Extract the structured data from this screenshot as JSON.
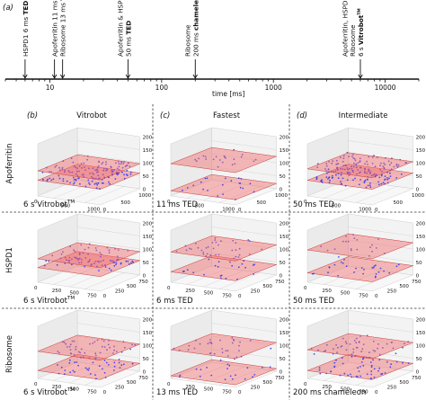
{
  "panel_a": {
    "label": "(a)",
    "axis_label": "time [ms]",
    "ticks": [
      {
        "value": 10,
        "label": "10"
      },
      {
        "value": 100,
        "label": "100"
      },
      {
        "value": 1000,
        "label": "1000"
      },
      {
        "value": 10000,
        "label": "10000"
      }
    ],
    "events": [
      {
        "time_ms": 6,
        "lines": [
          [
            {
              "t": "HSPD1 6 ms ",
              "b": false
            },
            {
              "t": "TED",
              "b": true
            }
          ]
        ]
      },
      {
        "time_ms": 11,
        "lines": [
          [
            {
              "t": "Apoferritin 11 ms ",
              "b": false
            },
            {
              "t": "TED",
              "b": true
            }
          ]
        ]
      },
      {
        "time_ms": 13,
        "lines": [
          [
            {
              "t": "Ribosome 13 ms ",
              "b": false
            },
            {
              "t": "TED",
              "b": true
            }
          ]
        ]
      },
      {
        "time_ms": 50,
        "lines": [
          [
            {
              "t": "Apoferritin & HSPD1",
              "b": false
            }
          ],
          [
            {
              "t": "50 ms ",
              "b": false
            },
            {
              "t": "TED",
              "b": true
            }
          ]
        ]
      },
      {
        "time_ms": 200,
        "lines": [
          [
            {
              "t": "Ribosome",
              "b": false
            }
          ],
          [
            {
              "t": "200 ms ",
              "b": false
            },
            {
              "t": "chameleon",
              "b": true
            }
          ]
        ]
      },
      {
        "time_ms": 6000,
        "lines": [
          [
            {
              "t": "Apoferritin, HSPD1 &",
              "b": false
            }
          ],
          [
            {
              "t": "Ribosome",
              "b": false
            }
          ],
          [
            {
              "t": "6 s ",
              "b": false
            },
            {
              "t": "Vitrobot",
              "b": true
            },
            {
              "t": "TM",
              "b": true,
              "sup": true
            }
          ]
        ]
      }
    ]
  },
  "columns": [
    {
      "letter": "(b)",
      "title": "Vitrobot"
    },
    {
      "letter": "(c)",
      "title": "Fastest"
    },
    {
      "letter": "(d)",
      "title": "Intermediate"
    }
  ],
  "rows": [
    {
      "label": "Apoferritin",
      "z_ticks": [
        "200",
        "150",
        "100",
        "50",
        "0"
      ],
      "xy_ticks": [
        "0",
        "500",
        "1000"
      ]
    },
    {
      "label": "HSPD1",
      "z_ticks": [
        "200",
        "150",
        "100",
        "50",
        "0"
      ],
      "xy_ticks": [
        "0",
        "250",
        "500",
        "750"
      ]
    },
    {
      "label": "Ribosome",
      "z_ticks": [
        "200",
        "150",
        "100",
        "50",
        "0"
      ],
      "xy_ticks": [
        "0",
        "250",
        "500",
        "750"
      ]
    }
  ],
  "captions": [
    [
      {
        "t": "6 s Vitrobot",
        "sup": "TM"
      },
      {
        "t": "11 ms TED"
      },
      {
        "t": "50 ms TED"
      }
    ],
    [
      {
        "t": "6 s Vitrobot",
        "sup": "TM"
      },
      {
        "t": "6 ms TED"
      },
      {
        "t": "50 ms TED"
      }
    ],
    [
      {
        "t": "6 s Vitrobot",
        "sup": "TM"
      },
      {
        "t": "13 ms TED"
      },
      {
        "t": "200 ms chameleon"
      }
    ]
  ],
  "colors": {
    "particles": "#2f36f0",
    "plane_fill": "#f26a6a",
    "plane_edge": "#c83c3c",
    "axis": "#222222",
    "grid": "#cfcfcf",
    "divider": "#333333"
  }
}
